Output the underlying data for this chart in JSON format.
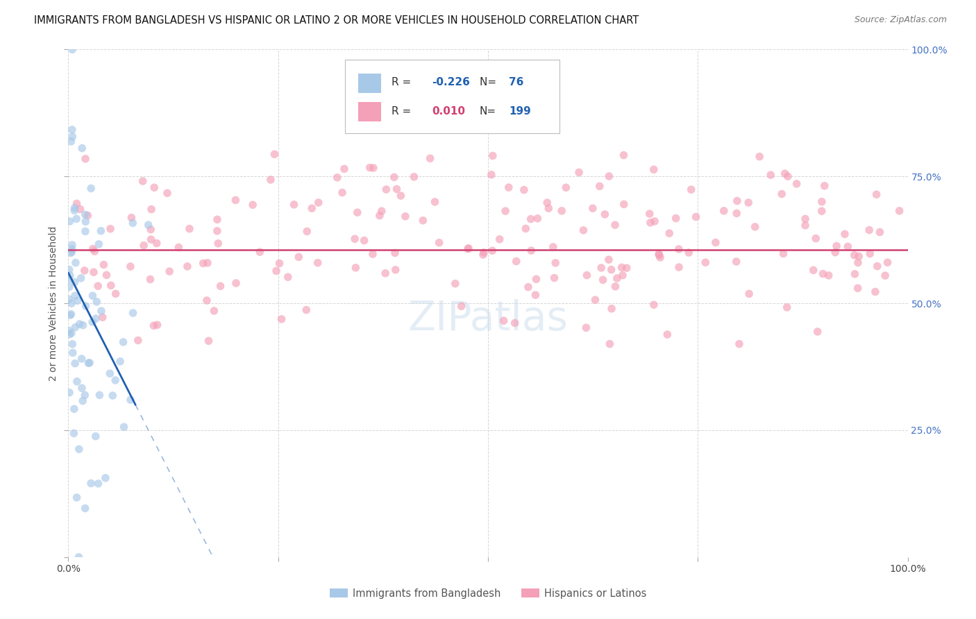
{
  "title": "IMMIGRANTS FROM BANGLADESH VS HISPANIC OR LATINO 2 OR MORE VEHICLES IN HOUSEHOLD CORRELATION CHART",
  "source": "Source: ZipAtlas.com",
  "ylabel": "2 or more Vehicles in Household",
  "blue_R": "-0.226",
  "blue_N": "76",
  "pink_R": "0.010",
  "pink_N": "199",
  "legend_label_blue": "Immigrants from Bangladesh",
  "legend_label_pink": "Hispanics or Latinos",
  "blue_color": "#a8c8e8",
  "pink_color": "#f4a0b8",
  "blue_line_color": "#2060b0",
  "pink_line_color": "#d04070",
  "legend_R_blue_color": "#2060b0",
  "legend_R_pink_color": "#d04070",
  "legend_N_color": "#2060b0",
  "background_color": "#ffffff",
  "grid_color": "#cccccc",
  "right_axis_color": "#4472c4",
  "title_fontsize": 10.5,
  "source_fontsize": 9
}
